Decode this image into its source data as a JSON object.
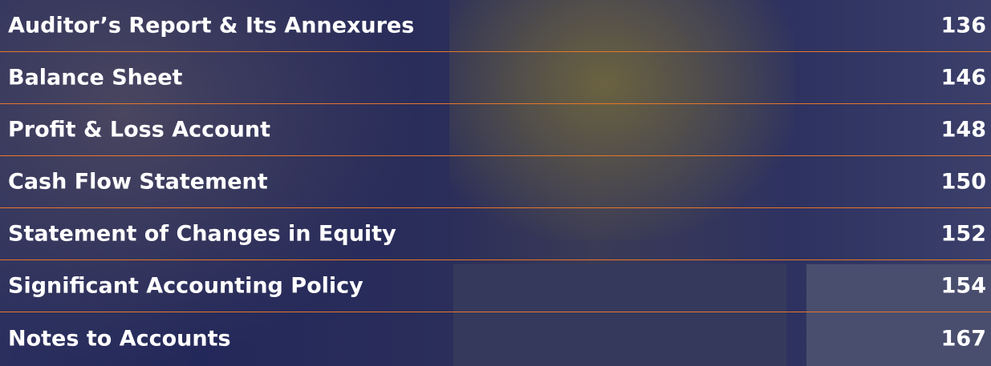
{
  "toc": {
    "entries": [
      {
        "title": "Auditor’s Report & Its Annexures",
        "page": "136"
      },
      {
        "title": "Balance Sheet",
        "page": "146"
      },
      {
        "title": "Profit & Loss Account",
        "page": "148"
      },
      {
        "title": "Cash Flow Statement",
        "page": "150"
      },
      {
        "title": "Statement of Changes in Equity",
        "page": "152"
      },
      {
        "title": "Significant Accounting Policy",
        "page": "154"
      },
      {
        "title": "Notes to Accounts",
        "page": "167"
      }
    ]
  }
}
